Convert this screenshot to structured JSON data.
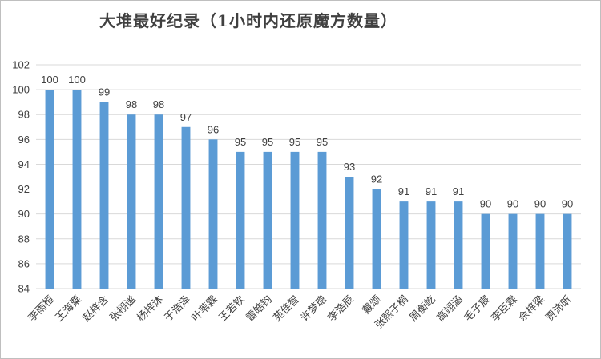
{
  "chart_data": {
    "type": "bar",
    "title": "大堆最好纪录（1小时内还原魔方数量）",
    "xlabel": "",
    "ylabel": "",
    "ylim": [
      84,
      102
    ],
    "ytick_step": 2,
    "grid": true,
    "bar_color": "#5b9bd5",
    "categories": [
      "李雨桓",
      "王海粟",
      "赵梓含",
      "张栩谧",
      "杨梓沐",
      "于浩泽",
      "叶苇霖",
      "王若钦",
      "雷皓钧",
      "苑佳智",
      "许梦璁",
      "李浩辰",
      "戴颂",
      "张熙子桐",
      "周衡屹",
      "高翊涵",
      "毛子宸",
      "李臣霖",
      "佘梓梁",
      "贾沛昕"
    ],
    "values": [
      100,
      100,
      99,
      98,
      98,
      97,
      96,
      95,
      95,
      95,
      95,
      93,
      92,
      91,
      91,
      91,
      90,
      90,
      90,
      90
    ]
  }
}
